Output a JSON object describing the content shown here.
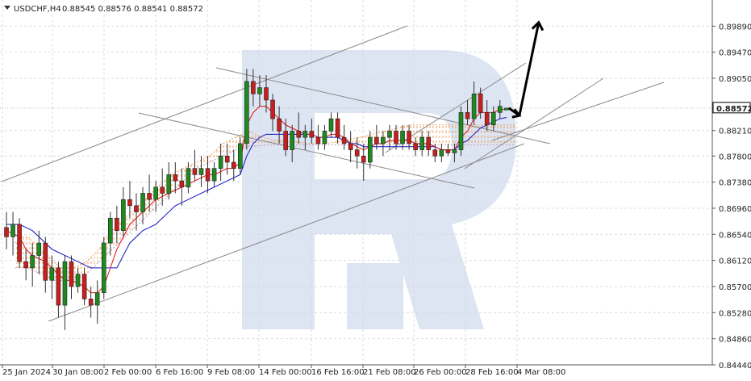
{
  "header": {
    "symbol": "USDCHF,H4",
    "ohlc": "0.88545 0.88576 0.88541 0.88572"
  },
  "price_badge": "0.88572",
  "chart_data": {
    "type": "candlestick",
    "title": "USDCHF,H4 0.88545 0.88576 0.88541 0.88572",
    "ylim": [
      0.8444,
      0.9031
    ],
    "y_ticks": [
      "0.89890",
      "0.89470",
      "0.89050",
      "0.88210",
      "0.87800",
      "0.87380",
      "0.86960",
      "0.86540",
      "0.86120",
      "0.85700",
      "0.85280",
      "0.84860",
      "0.84440"
    ],
    "x_ticks": [
      "25 Jan 2024",
      "30 Jan 08:00",
      "2 Feb 00:00",
      "6 Feb 16:00",
      "9 Feb 08:00",
      "14 Feb 00:00",
      "16 Feb 16:00",
      "21 Feb 08:00",
      "26 Feb 00:00",
      "28 Feb 16:00",
      "4 Mar 08:00"
    ],
    "grid": true,
    "last_price": 0.88572,
    "candles": [
      [
        0.8665,
        0.869,
        0.863,
        0.865
      ],
      [
        0.865,
        0.869,
        0.862,
        0.867
      ],
      [
        0.867,
        0.868,
        0.86,
        0.861
      ],
      [
        0.861,
        0.863,
        0.858,
        0.86
      ],
      [
        0.86,
        0.864,
        0.857,
        0.862
      ],
      [
        0.862,
        0.866,
        0.859,
        0.864
      ],
      [
        0.864,
        0.865,
        0.856,
        0.858
      ],
      [
        0.858,
        0.862,
        0.855,
        0.86
      ],
      [
        0.86,
        0.861,
        0.852,
        0.854
      ],
      [
        0.854,
        0.862,
        0.85,
        0.861
      ],
      [
        0.861,
        0.862,
        0.855,
        0.857
      ],
      [
        0.857,
        0.86,
        0.856,
        0.859
      ],
      [
        0.859,
        0.86,
        0.854,
        0.855
      ],
      [
        0.855,
        0.857,
        0.852,
        0.854
      ],
      [
        0.854,
        0.858,
        0.851,
        0.856
      ],
      [
        0.856,
        0.865,
        0.855,
        0.864
      ],
      [
        0.864,
        0.869,
        0.862,
        0.868
      ],
      [
        0.868,
        0.87,
        0.864,
        0.866
      ],
      [
        0.866,
        0.873,
        0.865,
        0.871
      ],
      [
        0.871,
        0.874,
        0.868,
        0.87
      ],
      [
        0.87,
        0.872,
        0.866,
        0.869
      ],
      [
        0.869,
        0.873,
        0.867,
        0.872
      ],
      [
        0.872,
        0.875,
        0.869,
        0.871
      ],
      [
        0.871,
        0.874,
        0.869,
        0.873
      ],
      [
        0.873,
        0.876,
        0.87,
        0.872
      ],
      [
        0.872,
        0.877,
        0.871,
        0.875
      ],
      [
        0.875,
        0.877,
        0.872,
        0.874
      ],
      [
        0.874,
        0.876,
        0.87,
        0.873
      ],
      [
        0.873,
        0.877,
        0.872,
        0.876
      ],
      [
        0.876,
        0.879,
        0.874,
        0.875
      ],
      [
        0.875,
        0.878,
        0.873,
        0.876
      ],
      [
        0.876,
        0.878,
        0.872,
        0.874
      ],
      [
        0.874,
        0.877,
        0.873,
        0.876
      ],
      [
        0.876,
        0.88,
        0.874,
        0.878
      ],
      [
        0.878,
        0.88,
        0.875,
        0.877
      ],
      [
        0.877,
        0.879,
        0.874,
        0.876
      ],
      [
        0.876,
        0.881,
        0.875,
        0.88
      ],
      [
        0.88,
        0.892,
        0.879,
        0.89
      ],
      [
        0.89,
        0.892,
        0.886,
        0.888
      ],
      [
        0.888,
        0.891,
        0.886,
        0.889
      ],
      [
        0.889,
        0.891,
        0.885,
        0.887
      ],
      [
        0.887,
        0.888,
        0.882,
        0.884
      ],
      [
        0.884,
        0.886,
        0.88,
        0.882
      ],
      [
        0.882,
        0.884,
        0.878,
        0.879
      ],
      [
        0.879,
        0.883,
        0.877,
        0.882
      ],
      [
        0.882,
        0.885,
        0.88,
        0.881
      ],
      [
        0.881,
        0.883,
        0.879,
        0.882
      ],
      [
        0.882,
        0.884,
        0.88,
        0.881
      ],
      [
        0.881,
        0.883,
        0.879,
        0.88
      ],
      [
        0.88,
        0.883,
        0.879,
        0.882
      ],
      [
        0.882,
        0.885,
        0.881,
        0.884
      ],
      [
        0.884,
        0.885,
        0.88,
        0.881
      ],
      [
        0.881,
        0.883,
        0.879,
        0.88
      ],
      [
        0.88,
        0.882,
        0.877,
        0.879
      ],
      [
        0.879,
        0.881,
        0.876,
        0.878
      ],
      [
        0.878,
        0.88,
        0.874,
        0.877
      ],
      [
        0.877,
        0.882,
        0.876,
        0.881
      ],
      [
        0.881,
        0.883,
        0.879,
        0.88
      ],
      [
        0.88,
        0.882,
        0.878,
        0.881
      ],
      [
        0.881,
        0.883,
        0.879,
        0.882
      ],
      [
        0.882,
        0.883,
        0.879,
        0.88
      ],
      [
        0.88,
        0.883,
        0.879,
        0.882
      ],
      [
        0.882,
        0.883,
        0.879,
        0.88
      ],
      [
        0.88,
        0.881,
        0.878,
        0.879
      ],
      [
        0.879,
        0.882,
        0.878,
        0.881
      ],
      [
        0.881,
        0.882,
        0.878,
        0.879
      ],
      [
        0.879,
        0.88,
        0.877,
        0.878
      ],
      [
        0.878,
        0.88,
        0.877,
        0.879
      ],
      [
        0.879,
        0.88,
        0.878,
        0.8785
      ],
      [
        0.8785,
        0.88,
        0.877,
        0.879
      ],
      [
        0.879,
        0.886,
        0.878,
        0.885
      ],
      [
        0.885,
        0.887,
        0.883,
        0.884
      ],
      [
        0.884,
        0.89,
        0.883,
        0.888
      ],
      [
        0.888,
        0.889,
        0.884,
        0.885
      ],
      [
        0.885,
        0.887,
        0.882,
        0.883
      ],
      [
        0.883,
        0.886,
        0.882,
        0.885
      ],
      [
        0.885,
        0.887,
        0.884,
        0.886
      ],
      [
        0.8854,
        0.8858,
        0.8854,
        0.8857
      ]
    ],
    "tenkan_sen": [
      0.866,
      0.8655,
      0.865,
      0.863,
      0.862,
      0.8615,
      0.861,
      0.86,
      0.859,
      0.858,
      0.858,
      0.8575,
      0.857,
      0.856,
      0.856,
      0.857,
      0.86,
      0.863,
      0.865,
      0.867,
      0.868,
      0.869,
      0.87,
      0.871,
      0.8715,
      0.872,
      0.8725,
      0.873,
      0.8735,
      0.874,
      0.8745,
      0.875,
      0.875,
      0.8755,
      0.876,
      0.876,
      0.877,
      0.883,
      0.885,
      0.886,
      0.886,
      0.885,
      0.884,
      0.883,
      0.8825,
      0.882,
      0.8815,
      0.8815,
      0.881,
      0.881,
      0.8815,
      0.8815,
      0.881,
      0.88,
      0.8795,
      0.879,
      0.8795,
      0.88,
      0.88,
      0.8805,
      0.8805,
      0.8805,
      0.8805,
      0.88,
      0.88,
      0.88,
      0.8795,
      0.879,
      0.879,
      0.879,
      0.881,
      0.882,
      0.884,
      0.885,
      0.885,
      0.885,
      0.8855,
      0.8855
    ],
    "kijun_sen": [
      0.867,
      0.867,
      0.867,
      0.8665,
      0.866,
      0.865,
      0.864,
      0.863,
      0.8625,
      0.862,
      0.8615,
      0.861,
      0.8605,
      0.86,
      0.86,
      0.86,
      0.86,
      0.86,
      0.862,
      0.864,
      0.865,
      0.866,
      0.8665,
      0.867,
      0.868,
      0.869,
      0.87,
      0.8705,
      0.871,
      0.8715,
      0.872,
      0.8725,
      0.873,
      0.8735,
      0.874,
      0.8745,
      0.875,
      0.878,
      0.88,
      0.881,
      0.8815,
      0.8815,
      0.8815,
      0.8815,
      0.8815,
      0.8815,
      0.8815,
      0.8815,
      0.881,
      0.881,
      0.881,
      0.881,
      0.8805,
      0.88,
      0.88,
      0.8795,
      0.8795,
      0.8795,
      0.8795,
      0.8795,
      0.8795,
      0.8795,
      0.8795,
      0.8795,
      0.8795,
      0.8795,
      0.8795,
      0.879,
      0.879,
      0.879,
      0.88,
      0.8805,
      0.8815,
      0.8825,
      0.883,
      0.8835,
      0.884,
      0.8842
    ],
    "cloud_span_a": [
      0.864,
      0.865,
      0.865,
      0.864,
      0.863,
      0.862,
      0.861,
      0.86,
      0.86,
      0.86,
      0.8605,
      0.861,
      0.862,
      0.863,
      0.865,
      0.866,
      0.867,
      0.868,
      0.869,
      0.87,
      0.871,
      0.872,
      0.873,
      0.874,
      0.875,
      0.8755,
      0.876,
      0.8765,
      0.877,
      0.8775,
      0.878,
      0.879,
      0.88,
      0.8805,
      0.881,
      0.8815,
      0.882,
      0.8815,
      0.881,
      0.8808,
      0.8806,
      0.8805,
      0.8804,
      0.8803,
      0.8802,
      0.88,
      0.88,
      0.88,
      0.88,
      0.8802,
      0.8804,
      0.8806,
      0.8808,
      0.881,
      0.8812,
      0.8815,
      0.8818,
      0.882,
      0.8822,
      0.8825,
      0.8828,
      0.883,
      0.883,
      0.883,
      0.883,
      0.883,
      0.883,
      0.883,
      0.883,
      0.883,
      0.883,
      0.883,
      0.883,
      0.883,
      0.883,
      0.883,
      0.883,
      0.883
    ],
    "cloud_span_b": [
      0.86,
      0.86,
      0.86,
      0.8595,
      0.859,
      0.8585,
      0.858,
      0.858,
      0.858,
      0.858,
      0.8585,
      0.859,
      0.86,
      0.861,
      0.862,
      0.863,
      0.864,
      0.865,
      0.866,
      0.867,
      0.868,
      0.869,
      0.87,
      0.871,
      0.872,
      0.873,
      0.874,
      0.875,
      0.876,
      0.8765,
      0.877,
      0.8775,
      0.878,
      0.8785,
      0.879,
      0.8792,
      0.8795,
      0.8796,
      0.8797,
      0.8798,
      0.8798,
      0.8798,
      0.8798,
      0.8798,
      0.8798,
      0.8798,
      0.8798,
      0.8798,
      0.8798,
      0.8798,
      0.8798,
      0.8798,
      0.8798,
      0.8798,
      0.8798,
      0.8798,
      0.8798,
      0.8798,
      0.8798,
      0.8798,
      0.8798,
      0.8798,
      0.8798,
      0.8798,
      0.8798,
      0.8798,
      0.8798,
      0.8798,
      0.8798,
      0.8798,
      0.8798,
      0.8798,
      0.8798,
      0.8798,
      0.8798,
      0.8798,
      0.8798,
      0.8798
    ],
    "forecast_arrow": {
      "from": 0.8845,
      "to": 0.8995
    },
    "colors": {
      "bull": "#1e8a1e",
      "bear": "#c81e1e",
      "tenkan": "#e01010",
      "kijun": "#1010c8",
      "cloud": "#f0a060",
      "trendline": "#888888",
      "grid": "#d8dbe3",
      "watermark": "#dde4f2"
    }
  }
}
